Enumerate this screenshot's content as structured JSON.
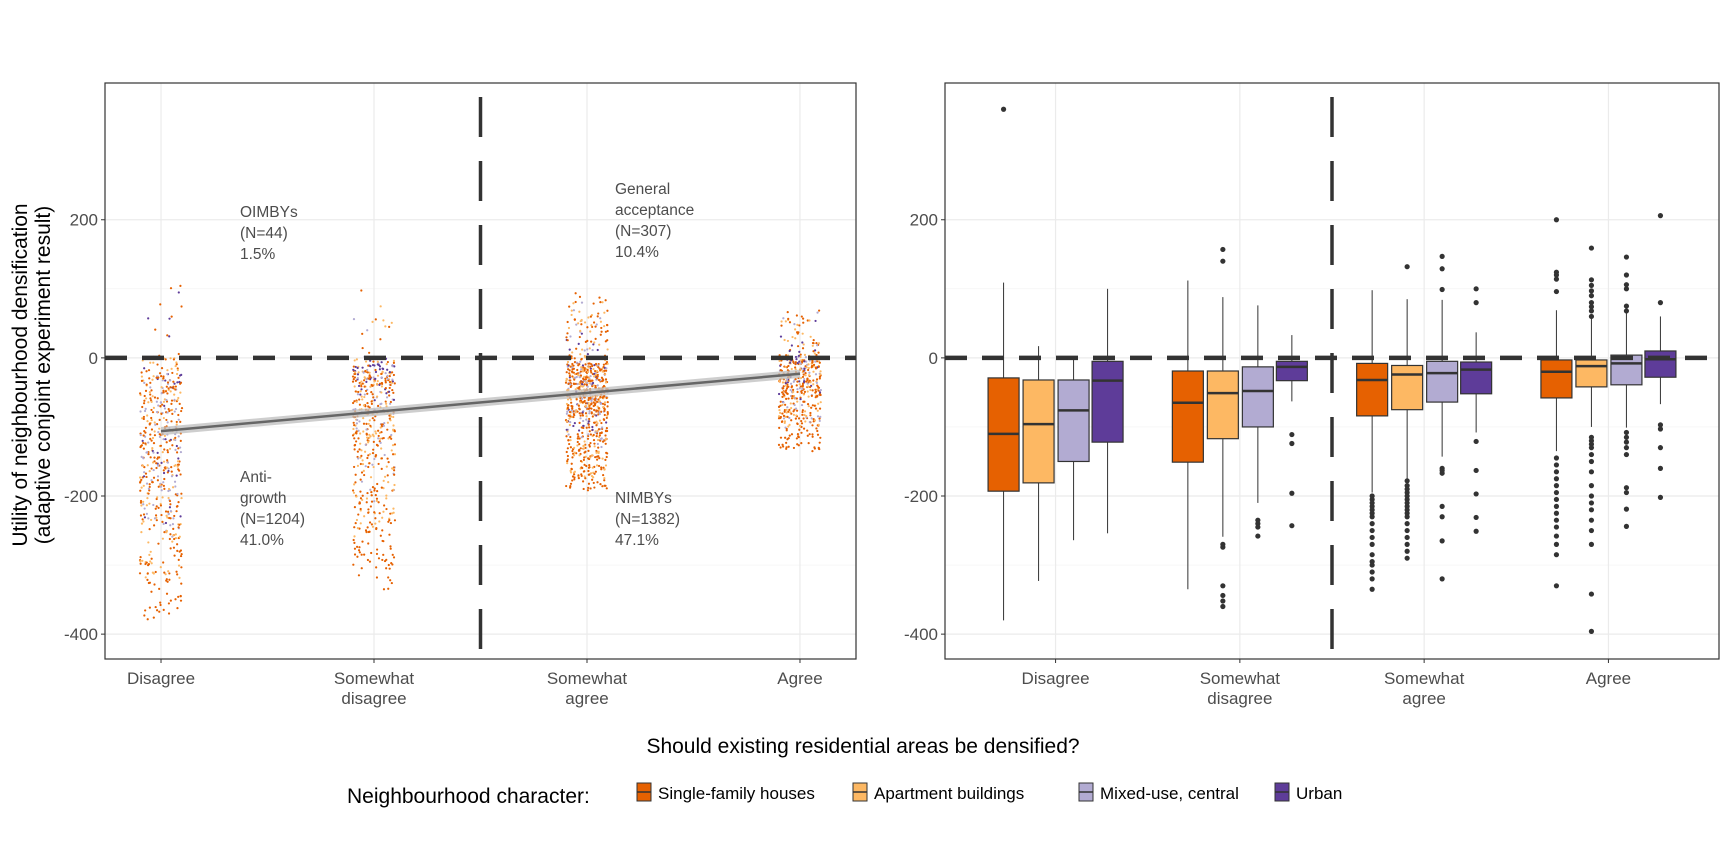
{
  "x_title": "Should existing residential areas be densified?",
  "y_title": [
    "Utility of neighbourhood densification",
    "(adaptive conjoint experiment result)"
  ],
  "legend": {
    "title": "Neighbourhood character:",
    "position": "bottom",
    "items": [
      {
        "label": "Single-family houses",
        "color": "#E66101"
      },
      {
        "label": "Apartment buildings",
        "color": "#FDB863"
      },
      {
        "label": "Mixed-use, central",
        "color": "#B2ABD2"
      },
      {
        "label": "Urban",
        "color": "#5E3C99"
      }
    ]
  },
  "chart_data": [
    {
      "type": "scatter",
      "categories": [
        [
          "Disagree"
        ],
        [
          "Somewhat",
          "disagree"
        ],
        [
          "Somewhat",
          "agree"
        ],
        [
          "Agree"
        ]
      ],
      "ylim": [
        -436,
        398
      ],
      "yticks": [
        -400,
        -200,
        0,
        200
      ],
      "grid": true,
      "reference_lines": {
        "horizontal_y": 0,
        "vertical_between": [
          "Somewhat disagree",
          "Somewhat agree"
        ],
        "style": "dashed"
      },
      "trend_line": {
        "x": [
          "Disagree",
          "Agree"
        ],
        "y": [
          -106,
          -23
        ],
        "band": 6,
        "color": "#666666"
      },
      "annotations": [
        {
          "lines": [
            "OIMBYs",
            "(N=44)",
            "1.5%"
          ]
        },
        {
          "lines": [
            "Anti-",
            "growth",
            "(N=1204)",
            "41.0%"
          ]
        },
        {
          "lines": [
            "General",
            "acceptance",
            "(N=307)",
            "10.4%"
          ]
        },
        {
          "lines": [
            "NIMBYs",
            "(N=1382)",
            "47.1%"
          ]
        }
      ]
    },
    {
      "type": "box",
      "categories": [
        [
          "Disagree"
        ],
        [
          "Somewhat",
          "disagree"
        ],
        [
          "Somewhat",
          "agree"
        ],
        [
          "Agree"
        ]
      ],
      "ylim": [
        -436,
        398
      ],
      "yticks": [
        -400,
        -200,
        0,
        200
      ],
      "grid": true,
      "series_order": [
        "Single-family houses",
        "Apartment buildings",
        "Mixed-use, central",
        "Urban"
      ],
      "boxes": [
        [
          {
            "stats": [
              -380,
              -193,
              -110,
              -29,
              109
            ],
            "outliers": [
              360
            ]
          },
          {
            "stats": [
              -323,
              -181,
              -96,
              -32,
              17
            ],
            "outliers": []
          },
          {
            "stats": [
              -264,
              -150,
              -76,
              -32,
              0
            ],
            "outliers": []
          },
          {
            "stats": [
              -254,
              -122,
              -33,
              -5,
              100
            ],
            "outliers": []
          }
        ],
        [
          {
            "stats": [
              -335,
              -151,
              -65,
              -19,
              112
            ],
            "outliers": []
          },
          {
            "stats": [
              -259,
              -117,
              -51,
              -19,
              88
            ],
            "outliers": [
              157,
              140,
              -270,
              -274,
              -330,
              -344,
              -352,
              -360
            ]
          },
          {
            "stats": [
              -210,
              -100,
              -48,
              -13,
              76
            ],
            "outliers": [
              -235,
              -240,
              -245,
              -258
            ]
          },
          {
            "stats": [
              -63,
              -33,
              -13,
              -5,
              33
            ],
            "outliers": [
              -111,
              -124,
              -196,
              -243
            ]
          }
        ],
        [
          {
            "stats": [
              -195,
              -84,
              -32,
              -8,
              98
            ],
            "outliers": [
              -200,
              -205,
              -210,
              -215,
              -220,
              -225,
              -230,
              -240,
              -250,
              -260,
              -270,
              -285,
              -295,
              -300,
              -310,
              -320,
              -335
            ]
          },
          {
            "stats": [
              -175,
              -75,
              -24,
              -11,
              85
            ],
            "outliers": [
              132,
              -178,
              -185,
              -190,
              -195,
              -200,
              -205,
              -210,
              -215,
              -220,
              -225,
              -230,
              -240,
              -250,
              -260,
              -270,
              -280,
              -290
            ]
          },
          {
            "stats": [
              -143,
              -64,
              -22,
              -5,
              84
            ],
            "outliers": [
              147,
              129,
              99,
              -160,
              -163,
              -167,
              -215,
              -230,
              -265,
              -320
            ]
          },
          {
            "stats": [
              -108,
              -52,
              -17,
              -6,
              37
            ],
            "outliers": [
              100,
              80,
              -121,
              -163,
              -197,
              -231,
              -251
            ]
          }
        ],
        [
          {
            "stats": [
              -135,
              -58,
              -20,
              -3,
              69
            ],
            "outliers": [
              200,
              124,
              120,
              114,
              96,
              -145,
              -155,
              -165,
              -175,
              -185,
              -195,
              -205,
              -215,
              -225,
              -235,
              -245,
              -258,
              -270,
              -285,
              -330
            ]
          },
          {
            "stats": [
              -100,
              -42,
              -12,
              -3,
              57
            ],
            "outliers": [
              159,
              113,
              105,
              97,
              90,
              80,
              74,
              68,
              60,
              -115,
              -120,
              -125,
              -130,
              -140,
              -150,
              -165,
              -185,
              -200,
              -210,
              -220,
              -235,
              -250,
              -270,
              -342,
              -396
            ]
          },
          {
            "stats": [
              -101,
              -39,
              -8,
              4,
              67
            ],
            "outliers": [
              146,
              120,
              106,
              100,
              75,
              68,
              -108,
              -115,
              -122,
              -130,
              -140,
              -188,
              -195,
              -219,
              -244
            ]
          },
          {
            "stats": [
              -67,
              -28,
              -2,
              10,
              60
            ],
            "outliers": [
              206,
              80,
              -97,
              -103,
              -130,
              -160,
              -202
            ]
          }
        ]
      ]
    }
  ]
}
